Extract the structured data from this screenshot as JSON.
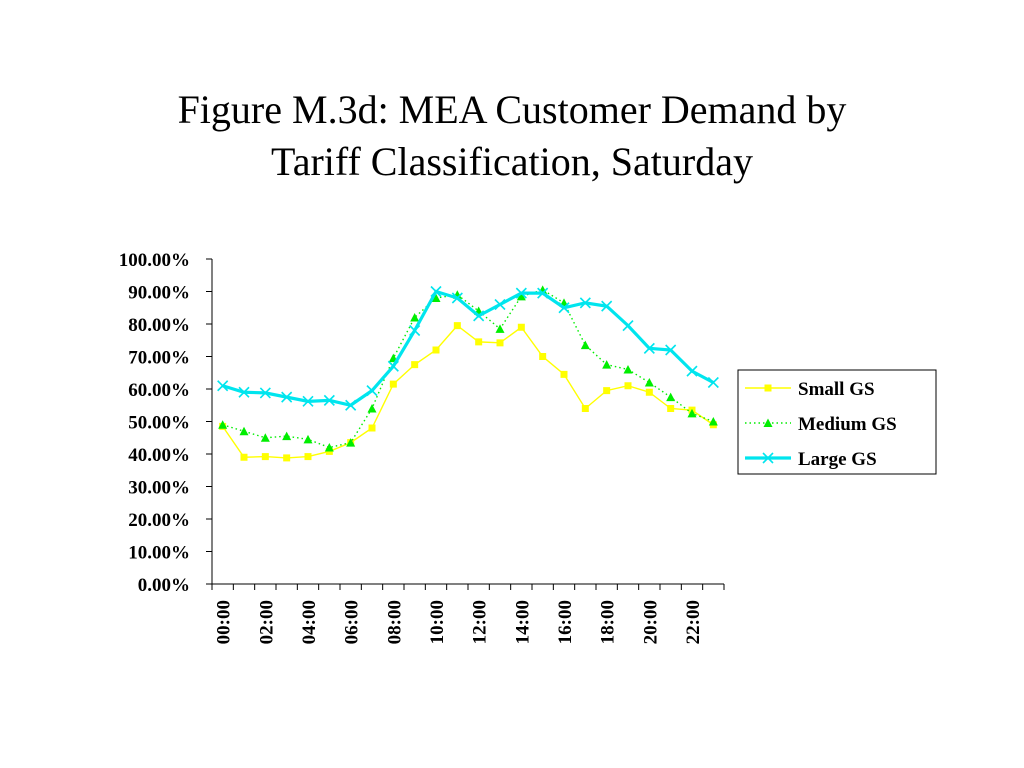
{
  "title_line1": "Figure M.3d: MEA Customer Demand by",
  "title_line2": "Tariff Classification, Saturday",
  "chart_data": {
    "type": "line",
    "title": "Figure M.3d: MEA Customer Demand by Tariff Classification, Saturday",
    "xlabel": "",
    "ylabel": "",
    "x": [
      "00:00",
      "01:00",
      "02:00",
      "03:00",
      "04:00",
      "05:00",
      "06:00",
      "07:00",
      "08:00",
      "09:00",
      "10:00",
      "11:00",
      "12:00",
      "13:00",
      "14:00",
      "15:00",
      "16:00",
      "17:00",
      "18:00",
      "19:00",
      "20:00",
      "21:00",
      "22:00",
      "23:00"
    ],
    "x_tick_labels": [
      "00:00",
      "02:00",
      "04:00",
      "06:00",
      "08:00",
      "10:00",
      "12:00",
      "14:00",
      "16:00",
      "18:00",
      "20:00",
      "22:00"
    ],
    "y_tick_labels": [
      "100.00%",
      "90.00%",
      "80.00%",
      "70.00%",
      "60.00%",
      "50.00%",
      "40.00%",
      "30.00%",
      "20.00%",
      "10.00%",
      "0.00%"
    ],
    "ylim": [
      0,
      100
    ],
    "grid": false,
    "legend_position": "right",
    "series": [
      {
        "name": "Small GS",
        "color": "#ffff00",
        "marker": "square",
        "line": "solid",
        "values": [
          48.5,
          39.0,
          39.2,
          38.8,
          39.2,
          40.8,
          43.5,
          48.0,
          61.5,
          67.5,
          72.0,
          79.5,
          74.5,
          74.2,
          79.0,
          70.0,
          64.5,
          54.0,
          59.5,
          61.0,
          59.0,
          54.0,
          53.5,
          49.0
        ]
      },
      {
        "name": "Medium GS",
        "color": "#00ee00",
        "marker": "triangle",
        "line": "dotted",
        "values": [
          49.0,
          47.0,
          45.0,
          45.5,
          44.5,
          42.0,
          43.5,
          54.0,
          69.5,
          82.0,
          88.0,
          89.0,
          84.0,
          78.5,
          88.5,
          90.5,
          86.5,
          73.5,
          67.5,
          66.0,
          62.0,
          57.5,
          52.5,
          50.0
        ]
      },
      {
        "name": "Large GS",
        "color": "#00e5ee",
        "marker": "x",
        "line": "solid",
        "values": [
          61.0,
          59.0,
          58.8,
          57.5,
          56.2,
          56.5,
          55.0,
          59.5,
          67.0,
          78.0,
          90.0,
          88.0,
          82.5,
          86.0,
          89.5,
          89.5,
          85.0,
          86.5,
          85.5,
          79.5,
          72.5,
          72.0,
          65.5,
          62.0
        ]
      }
    ]
  }
}
